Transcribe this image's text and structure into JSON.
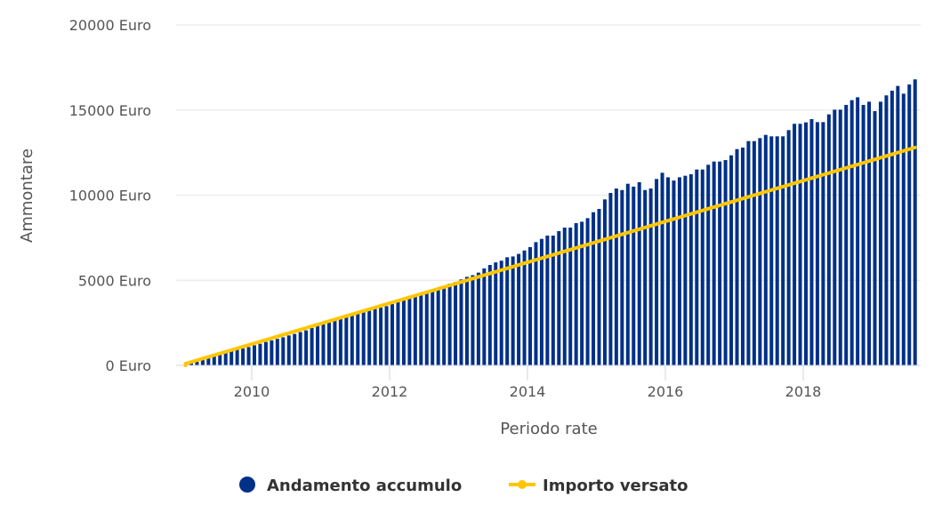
{
  "chart_data": {
    "type": "bar",
    "xlabel": "Periodo rate",
    "ylabel": "Ammontare",
    "x_start": "2009-01",
    "x_frequency": "monthly",
    "x_ticks": [
      "2010",
      "2012",
      "2014",
      "2016",
      "2018"
    ],
    "x_tick_values": [
      2010,
      2012,
      2014,
      2016,
      2018
    ],
    "ylim": [
      0,
      20000
    ],
    "y_ticks": [
      0,
      5000,
      10000,
      15000,
      20000
    ],
    "y_tick_labels": [
      "0 Euro",
      "5000 Euro",
      "10000 Euro",
      "15000 Euro",
      "20000 Euro"
    ],
    "grid": true,
    "legend_position": "bottom",
    "colors": {
      "bars": "#003087",
      "line": "#ffc600",
      "grid": "#e6e6e6",
      "axis": "#ccd6eb"
    },
    "series": [
      {
        "name": "Andamento accumulo",
        "type": "bar",
        "values": [
          90,
          180,
          270,
          370,
          460,
          560,
          650,
          750,
          840,
          920,
          1000,
          1080,
          1180,
          1270,
          1380,
          1470,
          1560,
          1650,
          1760,
          1850,
          1960,
          2060,
          2200,
          2330,
          2420,
          2540,
          2650,
          2780,
          2880,
          2960,
          3050,
          3130,
          3210,
          3320,
          3400,
          3480,
          3600,
          3720,
          3840,
          3960,
          4120,
          4250,
          4300,
          4450,
          4560,
          4650,
          4800,
          4900,
          5050,
          5200,
          5300,
          5450,
          5700,
          5900,
          6050,
          6150,
          6350,
          6400,
          6550,
          6750,
          6950,
          7240,
          7430,
          7625,
          7625,
          7885,
          8095,
          8095,
          8355,
          8440,
          8650,
          9000,
          9190,
          9750,
          10130,
          10390,
          10300,
          10670,
          10500,
          10760,
          10300,
          10390,
          10950,
          11315,
          11050,
          10860,
          11050,
          11140,
          11230,
          11505,
          11505,
          11785,
          11975,
          11975,
          12060,
          12340,
          12705,
          12795,
          13175,
          13175,
          13350,
          13540,
          13455,
          13455,
          13455,
          13820,
          14190,
          14190,
          14275,
          14465,
          14290,
          14290,
          14745,
          15020,
          15020,
          15300,
          15580,
          15750,
          15300,
          15490,
          14935,
          15490,
          15860,
          16135,
          16415,
          15960,
          16500,
          16800
        ]
      },
      {
        "name": "Importo versato",
        "type": "line",
        "values": [
          100,
          200,
          300,
          400,
          500,
          600,
          700,
          800,
          900,
          1000,
          1100,
          1200,
          1300,
          1400,
          1500,
          1600,
          1700,
          1800,
          1900,
          2000,
          2100,
          2200,
          2300,
          2400,
          2500,
          2600,
          2700,
          2800,
          2900,
          3000,
          3100,
          3200,
          3300,
          3400,
          3500,
          3600,
          3700,
          3800,
          3900,
          4000,
          4100,
          4200,
          4300,
          4400,
          4500,
          4600,
          4700,
          4800,
          4900,
          5000,
          5100,
          5200,
          5300,
          5400,
          5500,
          5600,
          5700,
          5800,
          5900,
          6000,
          6100,
          6200,
          6300,
          6400,
          6500,
          6600,
          6700,
          6800,
          6900,
          7000,
          7100,
          7200,
          7300,
          7400,
          7500,
          7600,
          7700,
          7800,
          7900,
          8000,
          8100,
          8200,
          8300,
          8400,
          8500,
          8600,
          8700,
          8800,
          8900,
          9000,
          9100,
          9200,
          9300,
          9400,
          9500,
          9600,
          9700,
          9800,
          9900,
          10000,
          10100,
          10200,
          10300,
          10400,
          10500,
          10600,
          10700,
          10800,
          10900,
          11000,
          11100,
          11200,
          11300,
          11400,
          11500,
          11600,
          11700,
          11800,
          11900,
          12000,
          12100,
          12200,
          12300,
          12400,
          12500,
          12600,
          12700,
          12800
        ]
      }
    ]
  }
}
